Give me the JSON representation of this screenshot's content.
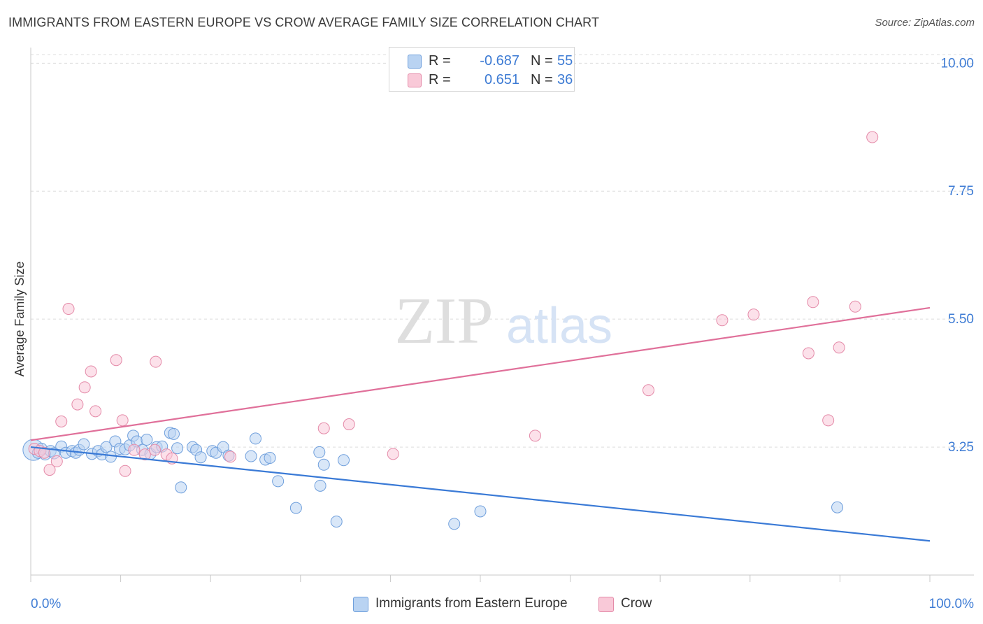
{
  "title": "IMMIGRANTS FROM EASTERN EUROPE VS CROW AVERAGE FAMILY SIZE CORRELATION CHART",
  "source": "Source: ZipAtlas.com",
  "watermark": {
    "zip": "ZIP",
    "atlas": "atlas"
  },
  "legend": [
    {
      "r_label": "R =",
      "r_value": "-0.687",
      "n_label": "N =",
      "n_value": "55"
    },
    {
      "r_label": "R =",
      "r_value": "0.651",
      "n_label": "N =",
      "n_value": "36"
    }
  ],
  "bottom_legend": [
    {
      "label": "Immigrants from Eastern Europe"
    },
    {
      "label": "Crow"
    }
  ],
  "colors": {
    "blue_fill": "#b9d3f2",
    "blue_stroke": "#6f9fdc",
    "blue_line": "#3a7ad6",
    "pink_fill": "#f9c9d8",
    "pink_stroke": "#e48aa8",
    "pink_line": "#e0709a",
    "tick_text": "#3d7bd4",
    "grid": "#dcdcdc"
  },
  "chart_data": {
    "type": "scatter",
    "title": "IMMIGRANTS FROM EASTERN EUROPE VS CROW AVERAGE FAMILY SIZE CORRELATION CHART",
    "xlabel": "",
    "ylabel": "Average Family Size",
    "xlim": [
      0,
      100
    ],
    "ylim": [
      1.0,
      10.25
    ],
    "x_tick_labels": [
      "0.0%",
      "100.0%"
    ],
    "y_ticks": [
      3.25,
      5.5,
      7.75,
      10.0
    ],
    "y_tick_labels": [
      "3.25",
      "5.50",
      "7.75",
      "10.00"
    ],
    "grid": true,
    "series": [
      {
        "name": "Immigrants from Eastern Europe",
        "color": "blue",
        "trend": {
          "x": [
            0,
            100
          ],
          "y": [
            3.25,
            1.6
          ]
        },
        "points": [
          {
            "x": 0.3,
            "y": 3.2,
            "big": true
          },
          {
            "x": 0.8,
            "y": 3.15
          },
          {
            "x": 1.2,
            "y": 3.22
          },
          {
            "x": 1.6,
            "y": 3.12
          },
          {
            "x": 2.2,
            "y": 3.18
          },
          {
            "x": 2.6,
            "y": 3.14
          },
          {
            "x": 3.4,
            "y": 3.26
          },
          {
            "x": 3.9,
            "y": 3.15
          },
          {
            "x": 4.6,
            "y": 3.18
          },
          {
            "x": 5.0,
            "y": 3.15
          },
          {
            "x": 5.4,
            "y": 3.2
          },
          {
            "x": 5.9,
            "y": 3.3
          },
          {
            "x": 6.8,
            "y": 3.13
          },
          {
            "x": 7.5,
            "y": 3.18
          },
          {
            "x": 7.9,
            "y": 3.12
          },
          {
            "x": 8.4,
            "y": 3.25
          },
          {
            "x": 8.9,
            "y": 3.08
          },
          {
            "x": 9.4,
            "y": 3.35
          },
          {
            "x": 9.9,
            "y": 3.22
          },
          {
            "x": 10.5,
            "y": 3.21
          },
          {
            "x": 11.0,
            "y": 3.28
          },
          {
            "x": 11.4,
            "y": 3.45
          },
          {
            "x": 11.8,
            "y": 3.35
          },
          {
            "x": 12.4,
            "y": 3.2
          },
          {
            "x": 12.9,
            "y": 3.38
          },
          {
            "x": 13.3,
            "y": 3.13
          },
          {
            "x": 14.0,
            "y": 3.25
          },
          {
            "x": 14.6,
            "y": 3.26
          },
          {
            "x": 15.5,
            "y": 3.5
          },
          {
            "x": 15.9,
            "y": 3.48
          },
          {
            "x": 16.3,
            "y": 3.23
          },
          {
            "x": 16.7,
            "y": 2.54
          },
          {
            "x": 18.0,
            "y": 3.25
          },
          {
            "x": 18.4,
            "y": 3.2
          },
          {
            "x": 18.9,
            "y": 3.07
          },
          {
            "x": 20.2,
            "y": 3.18
          },
          {
            "x": 20.6,
            "y": 3.15
          },
          {
            "x": 21.4,
            "y": 3.25
          },
          {
            "x": 22.0,
            "y": 3.1
          },
          {
            "x": 25.0,
            "y": 3.4
          },
          {
            "x": 24.5,
            "y": 3.09
          },
          {
            "x": 26.1,
            "y": 3.03
          },
          {
            "x": 26.6,
            "y": 3.06
          },
          {
            "x": 27.5,
            "y": 2.65
          },
          {
            "x": 29.5,
            "y": 2.18
          },
          {
            "x": 32.1,
            "y": 3.16
          },
          {
            "x": 32.6,
            "y": 2.94
          },
          {
            "x": 32.2,
            "y": 2.57
          },
          {
            "x": 34.8,
            "y": 3.02
          },
          {
            "x": 34.0,
            "y": 1.94
          },
          {
            "x": 47.1,
            "y": 1.9
          },
          {
            "x": 50.0,
            "y": 2.12
          },
          {
            "x": 89.7,
            "y": 2.19
          }
        ]
      },
      {
        "name": "Crow",
        "color": "pink",
        "trend": {
          "x": [
            0,
            100
          ],
          "y": [
            3.37,
            5.7
          ]
        },
        "points": [
          {
            "x": 0.4,
            "y": 3.22
          },
          {
            "x": 1.0,
            "y": 3.18
          },
          {
            "x": 1.5,
            "y": 3.15
          },
          {
            "x": 2.1,
            "y": 2.85
          },
          {
            "x": 2.9,
            "y": 3.0
          },
          {
            "x": 3.4,
            "y": 3.7
          },
          {
            "x": 4.2,
            "y": 5.68
          },
          {
            "x": 5.2,
            "y": 4.0
          },
          {
            "x": 6.0,
            "y": 4.3
          },
          {
            "x": 6.7,
            "y": 4.58
          },
          {
            "x": 7.2,
            "y": 3.88
          },
          {
            "x": 9.5,
            "y": 4.78
          },
          {
            "x": 10.2,
            "y": 3.72
          },
          {
            "x": 10.5,
            "y": 2.83
          },
          {
            "x": 11.5,
            "y": 3.2
          },
          {
            "x": 12.7,
            "y": 3.12
          },
          {
            "x": 13.8,
            "y": 3.2
          },
          {
            "x": 13.9,
            "y": 4.75
          },
          {
            "x": 15.1,
            "y": 3.12
          },
          {
            "x": 15.7,
            "y": 3.05
          },
          {
            "x": 22.2,
            "y": 3.08
          },
          {
            "x": 32.6,
            "y": 3.58
          },
          {
            "x": 35.4,
            "y": 3.65
          },
          {
            "x": 40.3,
            "y": 3.13
          },
          {
            "x": 56.1,
            "y": 3.45
          },
          {
            "x": 68.7,
            "y": 4.25
          },
          {
            "x": 76.9,
            "y": 5.48
          },
          {
            "x": 80.4,
            "y": 5.58
          },
          {
            "x": 86.5,
            "y": 4.9
          },
          {
            "x": 87.0,
            "y": 5.8
          },
          {
            "x": 88.7,
            "y": 3.72
          },
          {
            "x": 89.9,
            "y": 5.0
          },
          {
            "x": 91.7,
            "y": 5.72
          },
          {
            "x": 93.6,
            "y": 8.7
          }
        ]
      }
    ]
  }
}
